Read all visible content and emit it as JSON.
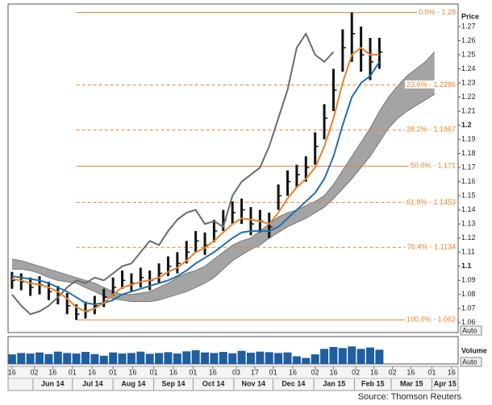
{
  "chart_data": {
    "type": "ohlc",
    "y_label": "Price",
    "volume_label": "Volume",
    "auto_buttons": [
      "Auto",
      "Auto"
    ],
    "source": "Source: Thomson Reuters",
    "x": [
      "2014-05-16",
      "2014-05-23",
      "2014-05-30",
      "2014-06-06",
      "2014-06-13",
      "2014-06-20",
      "2014-06-27",
      "2014-07-04",
      "2014-07-11",
      "2014-07-18",
      "2014-07-25",
      "2014-08-01",
      "2014-08-08",
      "2014-08-15",
      "2014-08-22",
      "2014-08-29",
      "2014-09-05",
      "2014-09-12",
      "2014-09-19",
      "2014-09-26",
      "2014-10-03",
      "2014-10-10",
      "2014-10-17",
      "2014-10-24",
      "2014-10-31",
      "2014-11-07",
      "2014-11-14",
      "2014-11-21",
      "2014-11-28",
      "2014-12-05",
      "2014-12-12",
      "2014-12-19",
      "2014-12-26",
      "2015-01-02",
      "2015-01-09",
      "2015-01-16",
      "2015-01-23",
      "2015-01-30",
      "2015-02-06",
      "2015-02-13",
      "2015-02-20",
      "2015-02-27",
      "2015-03-06",
      "2015-03-13",
      "2015-03-20",
      "2015-03-27",
      "2015-04-03"
    ],
    "xlim": [
      "2014-05-13",
      "2015-04-21"
    ],
    "xticks": [
      {
        "value": "2014-05-16",
        "label": "16"
      },
      {
        "value": "2014-06-02",
        "label": "02"
      },
      {
        "value": "2014-06-16",
        "label": "16"
      },
      {
        "value": "2014-07-01",
        "label": "01"
      },
      {
        "value": "2014-07-16",
        "label": "16"
      },
      {
        "value": "2014-08-01",
        "label": "01"
      },
      {
        "value": "2014-08-16",
        "label": "16"
      },
      {
        "value": "2014-09-01",
        "label": "01"
      },
      {
        "value": "2014-09-16",
        "label": "16"
      },
      {
        "value": "2014-10-01",
        "label": "01"
      },
      {
        "value": "2014-10-16",
        "label": "16"
      },
      {
        "value": "2014-11-03",
        "label": "03"
      },
      {
        "value": "2014-11-17",
        "label": "17"
      },
      {
        "value": "2014-12-01",
        "label": "01"
      },
      {
        "value": "2014-12-16",
        "label": "16"
      },
      {
        "value": "2015-01-02",
        "label": "02"
      },
      {
        "value": "2015-01-16",
        "label": "16"
      },
      {
        "value": "2015-02-02",
        "label": "02"
      },
      {
        "value": "2015-02-16",
        "label": "16"
      },
      {
        "value": "2015-03-02",
        "label": "02"
      },
      {
        "value": "2015-03-16",
        "label": "16"
      },
      {
        "value": "2015-04-01",
        "label": "01"
      },
      {
        "value": "2015-04-16",
        "label": "16"
      }
    ],
    "month_labels": [
      {
        "value": "2014-06",
        "label": "Jun 14"
      },
      {
        "value": "2014-07",
        "label": "Jul 14"
      },
      {
        "value": "2014-08",
        "label": "Aug 14"
      },
      {
        "value": "2014-09",
        "label": "Sep 14"
      },
      {
        "value": "2014-10",
        "label": "Oct 14"
      },
      {
        "value": "2014-11",
        "label": "Nov 14"
      },
      {
        "value": "2014-12",
        "label": "Dec 14"
      },
      {
        "value": "2015-01",
        "label": "Jan 15"
      },
      {
        "value": "2015-02",
        "label": "Feb 15"
      },
      {
        "value": "2015-03",
        "label": "Mar 15"
      },
      {
        "value": "2015-04",
        "label": "Apr 15"
      }
    ],
    "ylim": [
      1.053,
      1.286
    ],
    "yticks": [
      1.06,
      1.07,
      1.08,
      1.09,
      1.1,
      1.11,
      1.12,
      1.13,
      1.14,
      1.15,
      1.16,
      1.17,
      1.18,
      1.19,
      1.2,
      1.21,
      1.22,
      1.23,
      1.24,
      1.25,
      1.26,
      1.27
    ],
    "price": {
      "color": "#111111",
      "high": [
        1.096,
        1.095,
        1.092,
        1.093,
        1.089,
        1.086,
        1.081,
        1.073,
        1.075,
        1.079,
        1.084,
        1.092,
        1.097,
        1.095,
        1.099,
        1.097,
        1.102,
        1.107,
        1.11,
        1.118,
        1.125,
        1.124,
        1.133,
        1.14,
        1.146,
        1.148,
        1.142,
        1.14,
        1.138,
        1.158,
        1.168,
        1.172,
        1.178,
        1.195,
        1.215,
        1.24,
        1.268,
        1.28,
        1.27,
        1.262,
        1.262,
        null,
        null,
        null,
        null,
        null,
        null
      ],
      "low": [
        1.084,
        1.083,
        1.079,
        1.08,
        1.076,
        1.073,
        1.066,
        1.062,
        1.063,
        1.066,
        1.071,
        1.079,
        1.084,
        1.082,
        1.085,
        1.083,
        1.088,
        1.093,
        1.095,
        1.102,
        1.11,
        1.108,
        1.117,
        1.125,
        1.13,
        1.13,
        1.122,
        1.124,
        1.12,
        1.14,
        1.15,
        1.156,
        1.16,
        1.172,
        1.19,
        1.21,
        1.238,
        1.245,
        1.238,
        1.232,
        1.24,
        null,
        null,
        null,
        null,
        null,
        null
      ],
      "close": [
        1.09,
        1.089,
        1.085,
        1.087,
        1.082,
        1.08,
        1.072,
        1.066,
        1.068,
        1.072,
        1.078,
        1.085,
        1.09,
        1.088,
        1.092,
        1.09,
        1.095,
        1.1,
        1.102,
        1.11,
        1.118,
        1.115,
        1.125,
        1.133,
        1.138,
        1.14,
        1.13,
        1.132,
        1.128,
        1.15,
        1.16,
        1.165,
        1.17,
        1.185,
        1.205,
        1.225,
        1.255,
        1.265,
        1.25,
        1.245,
        1.252,
        null,
        null,
        null,
        null,
        null,
        null
      ]
    },
    "cloud": {
      "color": "#9a9a9a",
      "edge": "#777777",
      "span_a": [
        1.105,
        1.104,
        1.102,
        1.1,
        1.098,
        1.096,
        1.094,
        1.092,
        1.09,
        1.088,
        1.085,
        1.082,
        1.08,
        1.08,
        1.081,
        1.082,
        1.085,
        1.088,
        1.092,
        1.095,
        1.097,
        1.1,
        1.105,
        1.11,
        1.115,
        1.118,
        1.12,
        1.125,
        1.13,
        1.135,
        1.138,
        1.14,
        1.143,
        1.146,
        1.15,
        1.158,
        1.168,
        1.178,
        1.188,
        1.198,
        1.21,
        1.22,
        1.228,
        1.235,
        1.24,
        1.245,
        1.252
      ],
      "span_b": [
        1.098,
        1.098,
        1.097,
        1.095,
        1.092,
        1.09,
        1.089,
        1.088,
        1.085,
        1.082,
        1.079,
        1.077,
        1.076,
        1.075,
        1.075,
        1.075,
        1.076,
        1.078,
        1.08,
        1.082,
        1.085,
        1.088,
        1.092,
        1.098,
        1.104,
        1.108,
        1.112,
        1.115,
        1.12,
        1.124,
        1.128,
        1.131,
        1.134,
        1.138,
        1.142,
        1.148,
        1.155,
        1.162,
        1.17,
        1.178,
        1.188,
        1.198,
        1.205,
        1.21,
        1.214,
        1.218,
        1.222
      ]
    },
    "series": [
      {
        "color": "#6b6b6b",
        "values": [
          1.08,
          1.072,
          1.066,
          1.068,
          1.072,
          1.078,
          1.085,
          1.09,
          1.088,
          1.092,
          1.09,
          1.095,
          1.1,
          1.102,
          1.11,
          1.118,
          1.115,
          1.125,
          1.133,
          1.138,
          1.14,
          1.13,
          1.132,
          1.128,
          1.15,
          1.16,
          1.165,
          1.17,
          1.185,
          1.205,
          1.225,
          1.255,
          1.265,
          1.25,
          1.245,
          1.252,
          null,
          null,
          null,
          null,
          null,
          null,
          null,
          null,
          null,
          null,
          null
        ]
      },
      {
        "color": "#1f6fa8",
        "values": [
          1.093,
          1.092,
          1.091,
          1.09,
          1.088,
          1.085,
          1.082,
          1.078,
          1.074,
          1.073,
          1.074,
          1.076,
          1.08,
          1.082,
          1.084,
          1.086,
          1.088,
          1.09,
          1.093,
          1.097,
          1.102,
          1.106,
          1.11,
          1.115,
          1.12,
          1.124,
          1.125,
          1.125,
          1.125,
          1.128,
          1.134,
          1.14,
          1.146,
          1.152,
          1.162,
          1.178,
          1.2,
          1.22,
          1.23,
          1.235,
          1.245,
          null,
          null,
          null,
          null,
          null,
          null
        ]
      },
      {
        "color": "#e8822a",
        "values": [
          1.091,
          1.09,
          1.088,
          1.087,
          1.085,
          1.082,
          1.077,
          1.071,
          1.068,
          1.07,
          1.074,
          1.08,
          1.085,
          1.087,
          1.089,
          1.09,
          1.092,
          1.096,
          1.099,
          1.104,
          1.11,
          1.113,
          1.118,
          1.124,
          1.13,
          1.134,
          1.133,
          1.132,
          1.13,
          1.138,
          1.148,
          1.156,
          1.162,
          1.17,
          1.185,
          1.205,
          1.23,
          1.25,
          1.255,
          1.25,
          1.25,
          null,
          null,
          null,
          null,
          null,
          null
        ]
      }
    ],
    "fib_color": "#e8822a",
    "fib_start": "2014-07-04",
    "fib_levels": [
      {
        "value": 1.28,
        "label": "0.0% - 1.28",
        "style": "solid"
      },
      {
        "value": 1.2286,
        "label": "23.6% - 1.2286",
        "style": "dashed"
      },
      {
        "value": 1.1967,
        "label": "38.2% - 1.1967",
        "style": "dashed"
      },
      {
        "value": 1.171,
        "label": "50.0% - 1.171",
        "style": "solid"
      },
      {
        "value": 1.1453,
        "label": "61.8% - 1.1453",
        "style": "dashed"
      },
      {
        "value": 1.1134,
        "label": "76.4% - 1.1134",
        "style": "dashed"
      },
      {
        "value": 1.062,
        "label": "100.0% - 1.062",
        "style": "solid"
      }
    ],
    "volume": {
      "color": "#1f5fa0",
      "ylim": [
        0,
        100
      ],
      "values": [
        35,
        40,
        38,
        42,
        36,
        45,
        40,
        38,
        44,
        36,
        30,
        42,
        38,
        40,
        45,
        37,
        40,
        43,
        38,
        46,
        50,
        42,
        40,
        44,
        39,
        48,
        41,
        45,
        43,
        40,
        42,
        28,
        22,
        35,
        55,
        62,
        58,
        64,
        55,
        60,
        52,
        null,
        null,
        null,
        null,
        null,
        null
      ]
    }
  }
}
